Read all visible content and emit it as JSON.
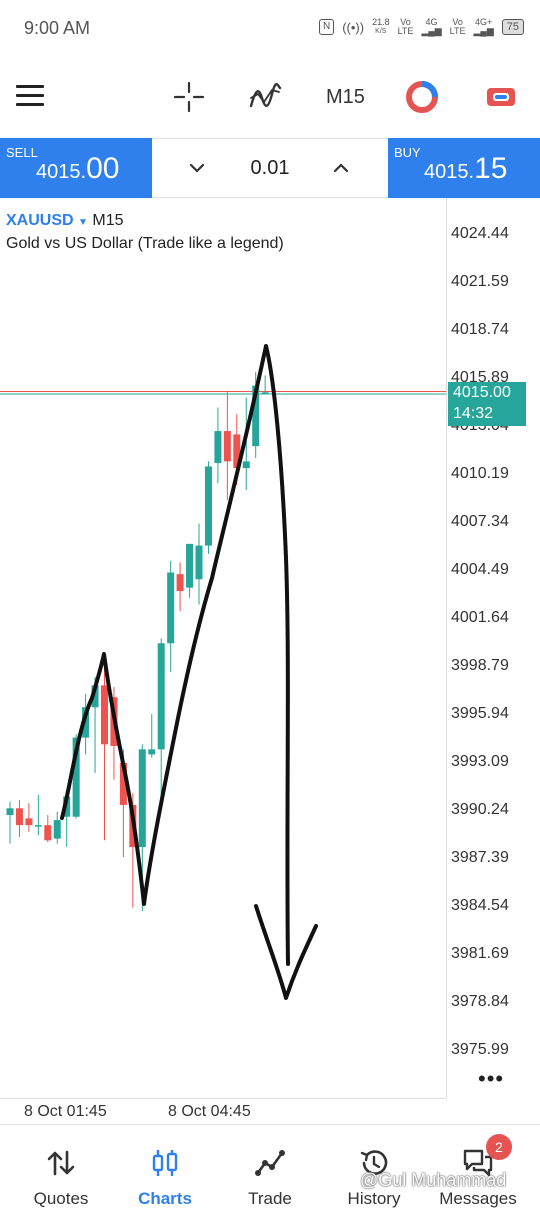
{
  "status_bar": {
    "time": "9:00 AM",
    "speed_value": "21.8",
    "speed_unit": "K/S",
    "volte1_top": "Vo",
    "volte1_bottom": "LTE",
    "net1": "4G",
    "volte2_top": "Vo",
    "volte2_bottom": "LTE",
    "net2": "4G+",
    "battery": "75"
  },
  "toolbar": {
    "timeframe": "M15"
  },
  "trade": {
    "sell_label": "SELL",
    "sell_price_main": "4015.",
    "sell_price_big": "00",
    "lot": "0.01",
    "buy_label": "BUY",
    "buy_price_main": "4015.",
    "buy_price_big": "15"
  },
  "chart_header": {
    "symbol": "XAUUSD",
    "caret": "▼",
    "timeframe": "M15",
    "description": "Gold vs US Dollar (Trade like a legend)"
  },
  "chart_data": {
    "type": "candlestick",
    "y_ticks": [
      "4024.44",
      "4021.59",
      "4018.74",
      "4015.89",
      "4013.04",
      "4010.19",
      "4007.34",
      "4004.49",
      "4001.64",
      "3998.79",
      "3995.94",
      "3993.09",
      "3990.24",
      "3987.39",
      "3984.54",
      "3981.69",
      "3978.84",
      "3975.99"
    ],
    "ylim": [
      3975.99,
      4024.44
    ],
    "x_ticks": [
      "8 Oct 01:45",
      "8 Oct 04:45"
    ],
    "current_price": "4015.00",
    "countdown": "14:32",
    "bull_color": "#26a69a",
    "bear_color": "#ef5350",
    "candles": [
      {
        "o": 3990.0,
        "h": 3990.8,
        "l": 3988.3,
        "c": 3990.4
      },
      {
        "o": 3990.4,
        "h": 3990.9,
        "l": 3988.7,
        "c": 3989.4
      },
      {
        "o": 3989.8,
        "h": 3990.7,
        "l": 3989.0,
        "c": 3989.4
      },
      {
        "o": 3989.4,
        "h": 3991.2,
        "l": 3988.8,
        "c": 3989.4
      },
      {
        "o": 3989.4,
        "h": 3990.0,
        "l": 3988.4,
        "c": 3988.5
      },
      {
        "o": 3988.6,
        "h": 3990.2,
        "l": 3988.3,
        "c": 3989.7
      },
      {
        "o": 3989.9,
        "h": 3991.2,
        "l": 3988.1,
        "c": 3991.1
      },
      {
        "o": 3989.9,
        "h": 3994.8,
        "l": 3989.8,
        "c": 3994.6
      },
      {
        "o": 3994.6,
        "h": 3997.2,
        "l": 3993.6,
        "c": 3996.4
      },
      {
        "o": 3996.4,
        "h": 3998.2,
        "l": 3992.5,
        "c": 3997.7
      },
      {
        "o": 3997.7,
        "h": 3998.8,
        "l": 3988.5,
        "c": 3994.2
      },
      {
        "o": 3997.0,
        "h": 3997.6,
        "l": 3992.1,
        "c": 3994.1
      },
      {
        "o": 3993.1,
        "h": 3993.9,
        "l": 3987.5,
        "c": 3990.6
      },
      {
        "o": 3990.6,
        "h": 3991.3,
        "l": 3984.5,
        "c": 3988.1
      },
      {
        "o": 3988.1,
        "h": 3994.2,
        "l": 3984.3,
        "c": 3993.9
      },
      {
        "o": 3993.6,
        "h": 3996.0,
        "l": 3993.4,
        "c": 3993.9
      },
      {
        "o": 3993.9,
        "h": 4000.5,
        "l": 3990.4,
        "c": 4000.2
      },
      {
        "o": 4000.2,
        "h": 4005.1,
        "l": 3998.5,
        "c": 4004.4
      },
      {
        "o": 4004.3,
        "h": 4005.0,
        "l": 4002.1,
        "c": 4003.3
      },
      {
        "o": 4003.5,
        "h": 4006.1,
        "l": 4002.9,
        "c": 4006.1
      },
      {
        "o": 4004.0,
        "h": 4007.3,
        "l": 4002.5,
        "c": 4006.0
      },
      {
        "o": 4006.0,
        "h": 4011.0,
        "l": 4005.5,
        "c": 4010.7
      },
      {
        "o": 4010.9,
        "h": 4014.2,
        "l": 4009.7,
        "c": 4012.8
      },
      {
        "o": 4012.8,
        "h": 4015.2,
        "l": 4008.7,
        "c": 4011.0
      },
      {
        "o": 4012.6,
        "h": 4013.8,
        "l": 4009.6,
        "c": 4010.6
      },
      {
        "o": 4010.6,
        "h": 4014.8,
        "l": 4009.3,
        "c": 4011.0
      },
      {
        "o": 4011.9,
        "h": 4016.3,
        "l": 4011.2,
        "c": 4015.5
      },
      {
        "o": 4015.0,
        "h": 4016.1,
        "l": 4015.0,
        "c": 4015.1
      }
    ]
  },
  "bottom_nav": {
    "items": [
      {
        "label": "Quotes"
      },
      {
        "label": "Charts"
      },
      {
        "label": "Trade"
      },
      {
        "label": "History"
      },
      {
        "label": "Messages"
      }
    ],
    "messages_badge": "2"
  },
  "watermark": "@Gul Muhammad"
}
